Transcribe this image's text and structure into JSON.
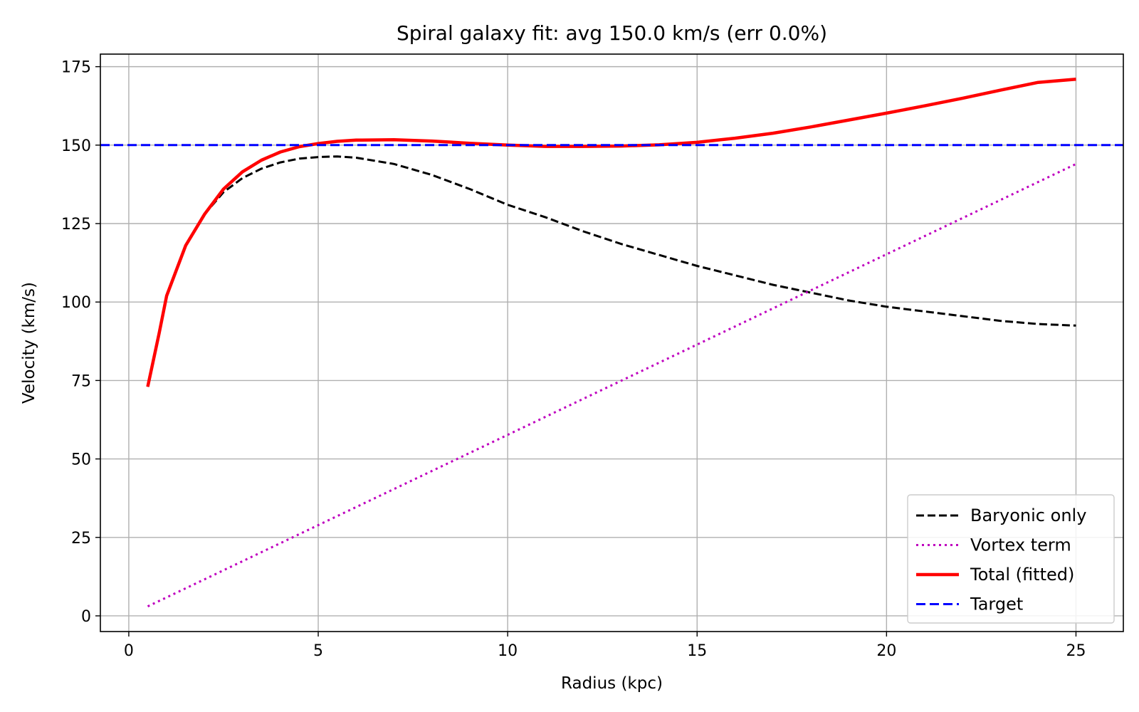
{
  "chart_data": {
    "type": "line",
    "title": "Spiral galaxy fit: avg 150.0 km/s (err 0.0%)",
    "xlabel": "Radius (kpc)",
    "ylabel": "Velocity (km/s)",
    "xlim": [
      -0.75,
      26.25
    ],
    "ylim": [
      -5,
      179
    ],
    "xticks": [
      0,
      5,
      10,
      15,
      20,
      25
    ],
    "yticks": [
      0,
      25,
      50,
      75,
      100,
      125,
      150,
      175
    ],
    "grid": true,
    "legend_position": "lower-right",
    "series": [
      {
        "name": "Baryonic only",
        "color": "#000000",
        "style": "dashed",
        "x": [
          0.5,
          1.0,
          1.5,
          2.0,
          2.5,
          3.0,
          3.5,
          4.0,
          4.5,
          5.0,
          5.5,
          6.0,
          7.0,
          8.0,
          9.0,
          10.0,
          11.0,
          12.0,
          13.0,
          14.0,
          15.0,
          16.0,
          17.0,
          18.0,
          19.0,
          20.0,
          21.0,
          22.0,
          23.0,
          24.0,
          25.0
        ],
        "y": [
          73,
          102,
          118,
          128,
          135,
          139.5,
          142.5,
          144.5,
          145.7,
          146.2,
          146.4,
          146.0,
          144.0,
          140.5,
          136.0,
          131.0,
          127.0,
          122.5,
          118.5,
          115.0,
          111.5,
          108.5,
          105.5,
          103.0,
          100.5,
          98.5,
          97.0,
          95.5,
          94.0,
          93.0,
          92.5
        ]
      },
      {
        "name": "Vortex term",
        "color": "#bf00bf",
        "style": "dotted",
        "x": [
          0.5,
          25.0
        ],
        "y": [
          3,
          144
        ]
      },
      {
        "name": "Total (fitted)",
        "color": "#ff0000",
        "style": "solid",
        "x": [
          0.5,
          0.8,
          1.0,
          1.5,
          2.0,
          2.5,
          3.0,
          3.5,
          4.0,
          4.5,
          5.0,
          5.5,
          6.0,
          7.0,
          8.0,
          9.0,
          10.0,
          11.0,
          12.0,
          13.0,
          14.0,
          15.0,
          16.0,
          17.0,
          18.0,
          19.0,
          20.0,
          21.0,
          22.0,
          23.0,
          24.0,
          25.0
        ],
        "y": [
          73,
          90,
          102,
          118,
          128,
          136,
          141.5,
          145.2,
          147.8,
          149.5,
          150.5,
          151.2,
          151.6,
          151.7,
          151.3,
          150.6,
          150.0,
          149.6,
          149.6,
          149.7,
          150.1,
          150.9,
          152.2,
          153.8,
          155.8,
          158.0,
          160.2,
          162.5,
          164.9,
          167.5,
          170.0,
          171.0
        ]
      },
      {
        "name": "Target",
        "color": "#0000ff",
        "style": "dashed-long",
        "x": [
          -0.75,
          26.25
        ],
        "y": [
          150,
          150
        ]
      }
    ]
  }
}
